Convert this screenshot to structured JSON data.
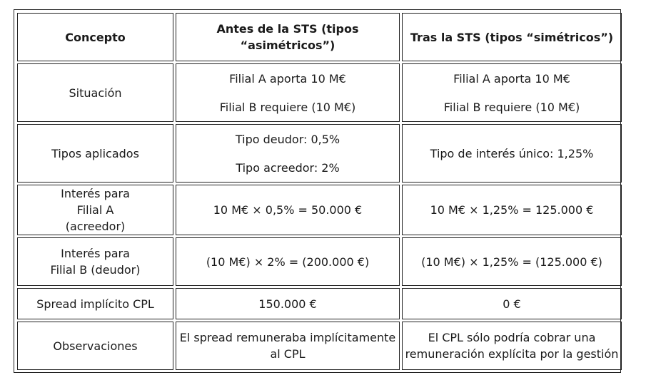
{
  "table": {
    "headers": [
      "Concepto",
      "Antes de la STS (tipos “asimétricos”)",
      "Tras la STS (tipos “simétricos”)"
    ],
    "rows": [
      {
        "concept": "Situación",
        "before": [
          "Filial A aporta 10 M€",
          "Filial B requiere (10 M€)"
        ],
        "after": [
          "Filial A aporta 10 M€",
          "Filial B requiere (10 M€)"
        ]
      },
      {
        "concept": "Tipos aplicados",
        "before": [
          "Tipo deudor: 0,5%",
          "Tipo acreedor: 2%"
        ],
        "after": [
          "Tipo de interés único: 1,25%"
        ]
      },
      {
        "concept": "Interés para Filial A (acreedor)",
        "before": [
          "10 M€ × 0,5% = 50.000 €"
        ],
        "after": [
          "10 M€ × 1,25% = 125.000 €"
        ]
      },
      {
        "concept": "Interés para Filial B (deudor)",
        "before": [
          "(10 M€) × 2% = (200.000 €)"
        ],
        "after": [
          "(10 M€) × 1,25% = (125.000 €)"
        ]
      },
      {
        "concept": "Spread implícito CPL",
        "before": [
          "150.000 €"
        ],
        "after": [
          "0 €"
        ]
      },
      {
        "concept": "Observaciones",
        "before": [
          "El spread remuneraba implícitamente al CPL"
        ],
        "after": [
          "El CPL sólo podría cobrar una remuneración explícita por la gestión"
        ]
      }
    ]
  }
}
